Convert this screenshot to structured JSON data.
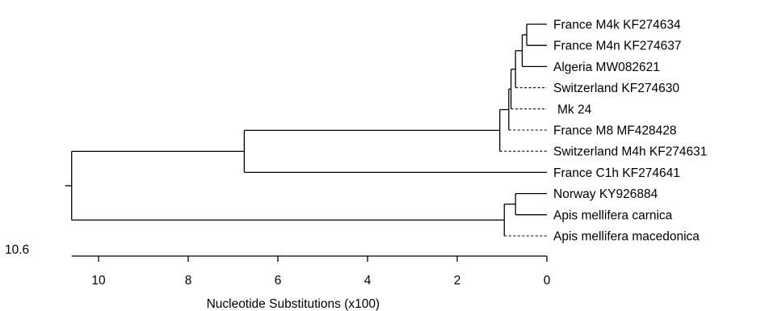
{
  "tree": {
    "leaves": [
      {
        "id": "a",
        "label": "France M4k KF274634",
        "dashed": false
      },
      {
        "id": "b",
        "label": "France M4n KF274637",
        "dashed": false
      },
      {
        "id": "c",
        "label": "Algeria MW082621",
        "dashed": false
      },
      {
        "id": "d",
        "label": "Switzerland KF274630",
        "dashed": true
      },
      {
        "id": "e",
        "label": "Mk 24",
        "dashed": true
      },
      {
        "id": "f",
        "label": "France M8 MF428428",
        "dashed": true
      },
      {
        "id": "g",
        "label": "Switzerland M4h KF274631",
        "dashed": true
      },
      {
        "id": "h",
        "label": "France C1h KF274641",
        "dashed": false
      },
      {
        "id": "i",
        "label": "Norway KY926884",
        "dashed": false
      },
      {
        "id": "j",
        "label": "Apis mellifera carnica",
        "dashed": false
      },
      {
        "id": "k",
        "label": "Apis mellifera macedonica",
        "dashed": true
      }
    ],
    "clades": [
      {
        "id": "n1",
        "height": 0.45,
        "children": [
          "a",
          "b"
        ]
      },
      {
        "id": "n2",
        "height": 0.55,
        "children": [
          "n1",
          "c"
        ]
      },
      {
        "id": "n3",
        "height": 0.7,
        "children": [
          "n2",
          "d"
        ]
      },
      {
        "id": "n4",
        "height": 0.8,
        "children": [
          "n3",
          "e"
        ]
      },
      {
        "id": "n5",
        "height": 0.85,
        "children": [
          "n4",
          "f"
        ]
      },
      {
        "id": "n6",
        "height": 1.05,
        "children": [
          "n5",
          "g"
        ]
      },
      {
        "id": "n7",
        "height": 6.75,
        "children": [
          "n6",
          "h"
        ]
      },
      {
        "id": "n8",
        "height": 0.7,
        "children": [
          "i",
          "j"
        ]
      },
      {
        "id": "n9",
        "height": 0.95,
        "children": [
          "n8",
          "k"
        ]
      },
      {
        "id": "root",
        "height": 10.6,
        "children": [
          "n7",
          "n9"
        ]
      }
    ]
  },
  "axis": {
    "title": "Nucleotide Substitutions (x100)",
    "ticks": [
      10,
      8,
      6,
      4,
      2,
      0
    ],
    "max_label": "10.6",
    "range": [
      10.6,
      0
    ]
  }
}
